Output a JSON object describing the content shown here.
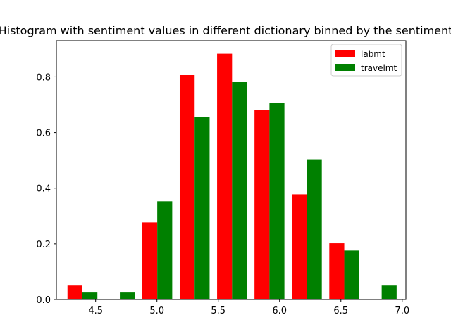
{
  "chart_data": {
    "type": "bar",
    "title": "Histogram with sentiment values in different dictionary binned by the sentiment",
    "xlabel": "",
    "ylabel": "",
    "xlim": [
      4.18,
      7.03
    ],
    "ylim": [
      0,
      0.93
    ],
    "xticks": [
      4.5,
      5.0,
      5.5,
      6.0,
      6.5,
      7.0
    ],
    "xtick_labels": [
      "4.5",
      "5.0",
      "5.5",
      "6.0",
      "6.5",
      "7.0"
    ],
    "yticks": [
      0.0,
      0.2,
      0.4,
      0.6,
      0.8
    ],
    "ytick_labels": [
      "0.0",
      "0.2",
      "0.4",
      "0.6",
      "0.8"
    ],
    "bin_edges": [
      4.24,
      4.545,
      4.85,
      5.155,
      5.46,
      5.765,
      6.07,
      6.375,
      6.68,
      6.985
    ],
    "grid": false,
    "legend_position": "top-right",
    "series": [
      {
        "name": "labmt",
        "color": "#ff0000",
        "values": [
          0.05,
          0.0,
          0.277,
          0.807,
          0.883,
          0.68,
          0.378,
          0.202,
          0.0
        ]
      },
      {
        "name": "travelmt",
        "color": "#008000",
        "values": [
          0.025,
          0.025,
          0.353,
          0.655,
          0.781,
          0.706,
          0.504,
          0.176,
          0.05
        ]
      }
    ]
  }
}
